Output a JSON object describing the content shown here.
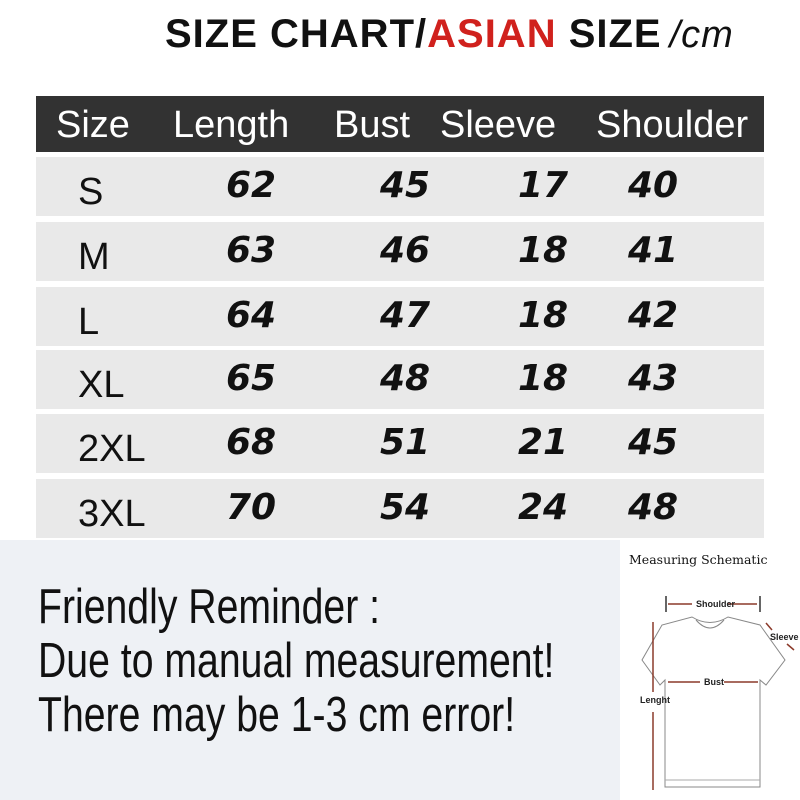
{
  "title": {
    "part1": "SIZE CHART/",
    "part2": "ASIAN",
    "part3": " SIZE",
    "unit": "/cm",
    "accent": "#d0211d"
  },
  "table": {
    "headers": [
      "Size",
      "Length",
      "Bust",
      "Sleeve",
      "Shoulder"
    ],
    "rows": [
      [
        "S",
        "62",
        "45",
        "17",
        "40"
      ],
      [
        "M",
        "63",
        "46",
        "18",
        "41"
      ],
      [
        "L",
        "64",
        "47",
        "18",
        "42"
      ],
      [
        "XL",
        "65",
        "48",
        "18",
        "43"
      ],
      [
        "2XL",
        "68",
        "51",
        "21",
        "45"
      ],
      [
        "3XL",
        "70",
        "54",
        "24",
        "48"
      ]
    ],
    "header_bg": "#323232",
    "row_bg": "#e9e9e9"
  },
  "reminder": {
    "line1": "Friendly Reminder :",
    "line2": "Due to manual measurement!",
    "line3": "There may be 1-3 cm error!"
  },
  "schematic": {
    "title": "Measuring Schematic",
    "shoulder": "Shoulder",
    "sleeve": "Sleeve",
    "bust": "Bust",
    "length": "Lenght",
    "arrow_color": "#8b3a2a"
  }
}
